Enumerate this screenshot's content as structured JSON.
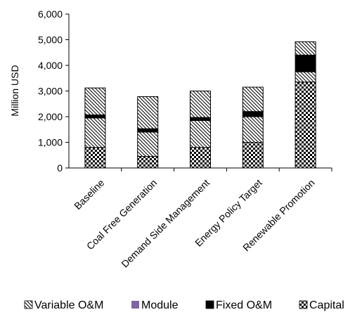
{
  "chart_data": {
    "type": "bar",
    "stacked": true,
    "title": "",
    "xlabel": "",
    "ylabel": "Million USD",
    "ylim": [
      0,
      6000
    ],
    "yticks": [
      0,
      1000,
      2000,
      3000,
      4000,
      5000,
      6000
    ],
    "ytick_labels": [
      "0",
      "1,000",
      "2,000",
      "3,000",
      "4,000",
      "5,000",
      "6,000"
    ],
    "categories": [
      "Baseline",
      "Coal Free Generation",
      "Demand Side Management",
      "Energy Policy Target",
      "Renewable Promotion"
    ],
    "series": [
      {
        "name": "Capital",
        "key": "capital",
        "pattern": "checker",
        "values": [
          800,
          450,
          800,
          1000,
          3350
        ]
      },
      {
        "name": "Variable O&M",
        "key": "variable",
        "pattern": "hatch",
        "values": [
          1150,
          950,
          1050,
          1000,
          400
        ]
      },
      {
        "name": "Fixed O&M",
        "key": "fixed",
        "pattern": "solid",
        "values": [
          120,
          130,
          120,
          200,
          650
        ]
      },
      {
        "name": "Module",
        "key": "module",
        "pattern": "purple",
        "values": [
          0,
          0,
          0,
          0,
          0
        ]
      },
      {
        "name": "Variable O&M",
        "key": "variable",
        "pattern": "hatch",
        "values": [
          1050,
          1250,
          1030,
          950,
          520
        ]
      }
    ],
    "legend": {
      "position": "bottom",
      "items": [
        {
          "label": "Variable O&M",
          "pattern": "hatch"
        },
        {
          "label": "Module",
          "pattern": "purple"
        },
        {
          "label": "Fixed O&M",
          "pattern": "solid"
        },
        {
          "label": "Capital",
          "pattern": "checker"
        }
      ]
    },
    "grid": false,
    "colors": {
      "module": "#8064a2",
      "fixed": "#000000",
      "ink": "#000000"
    }
  }
}
